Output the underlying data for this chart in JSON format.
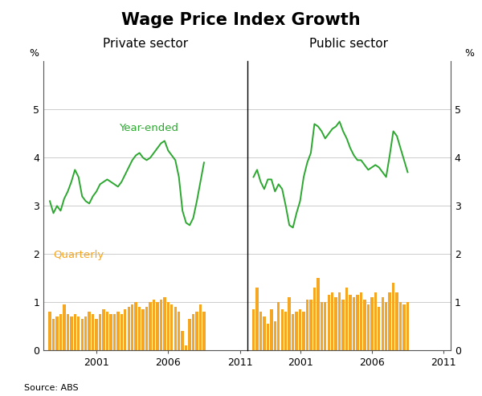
{
  "title": "Wage Price Index Growth",
  "title_fontsize": 15,
  "panel_labels": [
    "Private sector",
    "Public sector"
  ],
  "line_label": "Year-ended",
  "bar_label": "Quarterly",
  "line_color": "#2ca830",
  "bar_color": "#f5a623",
  "ylabel_left": "%",
  "ylabel_right": "%",
  "source": "Source: ABS",
  "ylim": [
    0,
    6
  ],
  "yticks": [
    0,
    1,
    2,
    3,
    4,
    5
  ],
  "yticklabels": [
    "0",
    "1",
    "2",
    "3",
    "4",
    "5"
  ],
  "private_year_ended": [
    3.1,
    2.85,
    3.0,
    2.9,
    3.15,
    3.3,
    3.5,
    3.75,
    3.6,
    3.2,
    3.1,
    3.05,
    3.2,
    3.3,
    3.45,
    3.5,
    3.55,
    3.5,
    3.45,
    3.4,
    3.5,
    3.65,
    3.8,
    3.95,
    4.05,
    4.1,
    4.0,
    3.95,
    4.0,
    4.1,
    4.2,
    4.3,
    4.35,
    4.15,
    4.05,
    3.95,
    3.6,
    2.9,
    2.65,
    2.6,
    2.75,
    3.1,
    3.5,
    3.9
  ],
  "private_quarterly": [
    0.8,
    0.65,
    0.7,
    0.75,
    0.95,
    0.75,
    0.7,
    0.75,
    0.7,
    0.65,
    0.7,
    0.8,
    0.75,
    0.65,
    0.75,
    0.85,
    0.8,
    0.75,
    0.75,
    0.8,
    0.75,
    0.85,
    0.9,
    0.95,
    1.0,
    0.9,
    0.85,
    0.9,
    1.0,
    1.05,
    1.0,
    1.05,
    1.1,
    1.0,
    0.95,
    0.9,
    0.8,
    0.4,
    0.1,
    0.65,
    0.75,
    0.8,
    0.95,
    0.8
  ],
  "public_year_ended": [
    3.6,
    3.75,
    3.5,
    3.35,
    3.55,
    3.55,
    3.3,
    3.45,
    3.35,
    3.0,
    2.6,
    2.55,
    2.85,
    3.1,
    3.6,
    3.9,
    4.1,
    4.7,
    4.65,
    4.55,
    4.4,
    4.5,
    4.6,
    4.65,
    4.75,
    4.55,
    4.4,
    4.2,
    4.05,
    3.95,
    3.95,
    3.85,
    3.75,
    3.8,
    3.85,
    3.8,
    3.7,
    3.6,
    4.05,
    4.55,
    4.45,
    4.2,
    3.95,
    3.7
  ],
  "public_quarterly": [
    0.85,
    1.3,
    0.8,
    0.7,
    0.55,
    0.85,
    0.6,
    1.0,
    0.85,
    0.8,
    1.1,
    0.75,
    0.8,
    0.85,
    0.8,
    1.05,
    1.05,
    1.3,
    1.5,
    1.0,
    1.0,
    1.15,
    1.2,
    1.1,
    1.2,
    1.05,
    1.3,
    1.15,
    1.1,
    1.15,
    1.2,
    1.05,
    0.95,
    1.1,
    1.2,
    0.9,
    1.1,
    1.0,
    1.2,
    1.4,
    1.2,
    1.0,
    0.95,
    1.0
  ],
  "x_start_year": 1997.75,
  "n_quarters": 44,
  "background_color": "#ffffff",
  "grid_color": "#cccccc",
  "panel_label_fontsize": 11,
  "bar_width": 0.19,
  "xlim_left": [
    1997.3,
    2011.5
  ],
  "xlim_right": [
    1997.3,
    2011.5
  ],
  "xtick_positions": [
    2001,
    2006,
    2011
  ],
  "xtick_labels": [
    "2001",
    "2006",
    "2011"
  ]
}
